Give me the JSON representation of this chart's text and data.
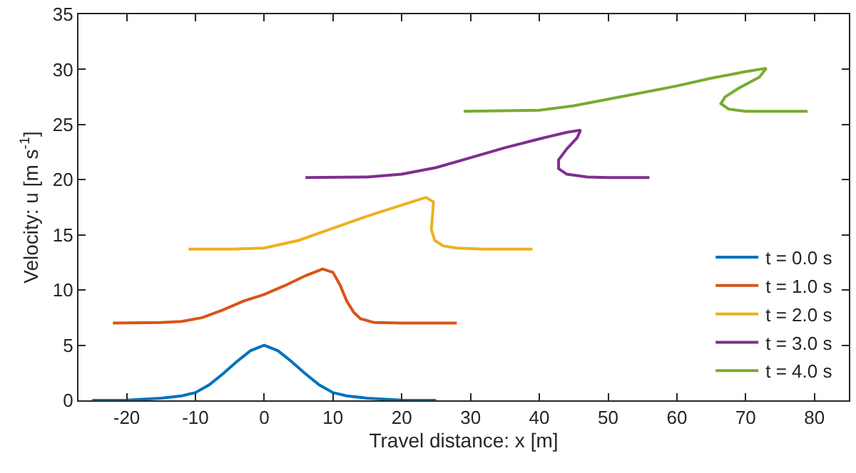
{
  "chart_data": {
    "type": "line",
    "xlabel": "Travel distance: x [m]",
    "ylabel": "Velocity: u [m s$^{-1}$]",
    "xlim": [
      -27,
      85
    ],
    "xticks": [
      -20,
      -10,
      0,
      10,
      20,
      30,
      40,
      50,
      60,
      70,
      80
    ],
    "ylim": [
      0,
      35
    ],
    "yticks": [
      0,
      5,
      10,
      15,
      20,
      25,
      30,
      35
    ],
    "grid": false,
    "legend": "bottom right",
    "marker": "none",
    "line_style": "solid",
    "series": [
      {
        "name": "t = 0.0 s",
        "color": "#0072bd",
        "x": [
          -25,
          -20,
          -15,
          -12,
          -10,
          -8,
          -6,
          -4,
          -2,
          0,
          2,
          4,
          6,
          8,
          10,
          12,
          15,
          20,
          25
        ],
        "values": [
          0,
          0.02,
          0.2,
          0.4,
          0.7,
          1.4,
          2.4,
          3.5,
          4.5,
          5,
          4.5,
          3.5,
          2.4,
          1.4,
          0.7,
          0.4,
          0.2,
          0.02,
          0
        ]
      },
      {
        "name": "t = 1.0 s",
        "color": "#d95319",
        "x": [
          -22,
          -15,
          -12,
          -9,
          -6,
          -3,
          0,
          3,
          6,
          8.5,
          10,
          11,
          12,
          13,
          14,
          16,
          20,
          28
        ],
        "values": [
          7,
          7.05,
          7.15,
          7.5,
          8.2,
          9,
          9.6,
          10.4,
          11.3,
          11.9,
          11.6,
          10.5,
          9,
          8,
          7.4,
          7.05,
          7,
          7
        ]
      },
      {
        "name": "t = 2.0 s",
        "color": "#edb120",
        "x": [
          -11,
          -5,
          0,
          5,
          10,
          15,
          20,
          23.5,
          24.6,
          24.5,
          24.3,
          24.8,
          26,
          28,
          32,
          39
        ],
        "values": [
          13.7,
          13.7,
          13.8,
          14.5,
          15.6,
          16.7,
          17.7,
          18.4,
          18,
          17,
          15.5,
          14.5,
          14,
          13.8,
          13.7,
          13.7
        ]
      },
      {
        "name": "t = 3.0 s",
        "color": "#7e2f8e",
        "x": [
          6,
          15,
          20,
          25,
          30,
          35,
          40,
          44,
          46,
          45.5,
          44,
          42.8,
          42.8,
          44,
          47,
          50,
          56
        ],
        "values": [
          20.2,
          20.25,
          20.5,
          21.1,
          22,
          22.9,
          23.7,
          24.3,
          24.5,
          23.8,
          22.8,
          21.8,
          21,
          20.5,
          20.25,
          20.2,
          20.2
        ]
      },
      {
        "name": "t = 4.0 s",
        "color": "#77ac30",
        "x": [
          29,
          40,
          45,
          50,
          55,
          60,
          65,
          70,
          73,
          72,
          69,
          67,
          66.4,
          67.5,
          70,
          79
        ],
        "values": [
          26.2,
          26.3,
          26.7,
          27.3,
          27.9,
          28.5,
          29.2,
          29.8,
          30.1,
          29.3,
          28.3,
          27.5,
          26.9,
          26.4,
          26.2,
          26.2
        ]
      }
    ]
  }
}
